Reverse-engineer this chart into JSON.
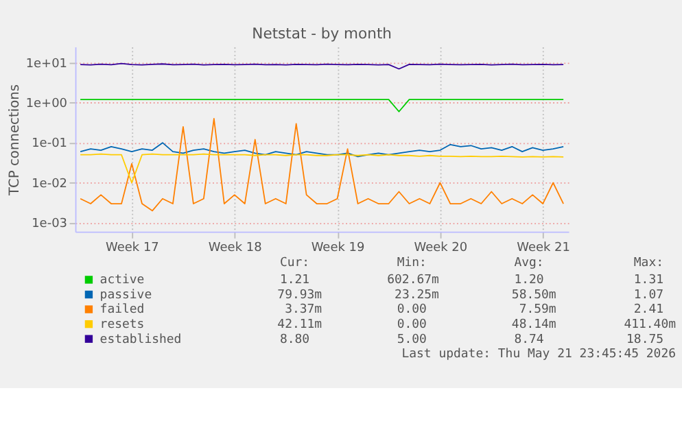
{
  "chart_data": {
    "type": "line",
    "title": "Netstat - by month",
    "ylabel": "TCP connections",
    "categories": [
      null,
      null,
      null,
      null,
      null,
      "Week 17",
      null,
      null,
      null,
      null,
      null,
      null,
      null,
      null,
      null,
      "Week 18",
      null,
      null,
      null,
      null,
      null,
      null,
      null,
      null,
      null,
      "Week 19",
      null,
      null,
      null,
      null,
      null,
      null,
      null,
      null,
      null,
      "Week 20",
      null,
      null,
      null,
      null,
      null,
      null,
      null,
      null,
      null,
      "Week 21",
      null,
      null
    ],
    "series": [
      {
        "name": "active",
        "color": "#00cc00",
        "values": [
          1.2,
          1.2,
          1.2,
          1.2,
          1.2,
          1.2,
          1.2,
          1.2,
          1.2,
          1.2,
          1.2,
          1.2,
          1.2,
          1.2,
          1.2,
          1.2,
          1.2,
          1.2,
          1.2,
          1.2,
          1.2,
          1.2,
          1.2,
          1.2,
          1.2,
          1.2,
          1.2,
          1.2,
          1.2,
          1.2,
          1.2,
          0.6,
          1.2,
          1.2,
          1.2,
          1.2,
          1.2,
          1.2,
          1.2,
          1.2,
          1.2,
          1.2,
          1.2,
          1.2,
          1.2,
          1.2,
          1.2,
          1.2
        ]
      },
      {
        "name": "passive",
        "color": "#0066b3",
        "values": [
          0.06,
          0.07,
          0.065,
          0.08,
          0.07,
          0.06,
          0.07,
          0.065,
          0.1,
          0.06,
          0.055,
          0.065,
          0.07,
          0.06,
          0.055,
          0.06,
          0.065,
          0.055,
          0.05,
          0.06,
          0.055,
          0.05,
          0.06,
          0.055,
          0.05,
          0.05,
          0.055,
          0.045,
          0.05,
          0.055,
          0.05,
          0.055,
          0.06,
          0.065,
          0.06,
          0.065,
          0.09,
          0.08,
          0.085,
          0.07,
          0.075,
          0.065,
          0.08,
          0.06,
          0.075,
          0.065,
          0.07,
          0.08
        ]
      },
      {
        "name": "failed",
        "color": "#ff8000",
        "values": [
          0.004,
          0.003,
          0.005,
          0.003,
          0.003,
          0.03,
          0.003,
          0.002,
          0.004,
          0.003,
          0.25,
          0.003,
          0.004,
          0.4,
          0.003,
          0.005,
          0.003,
          0.12,
          0.003,
          0.004,
          0.003,
          0.3,
          0.005,
          0.003,
          0.003,
          0.004,
          0.07,
          0.003,
          0.004,
          0.003,
          0.003,
          0.006,
          0.003,
          0.004,
          0.003,
          0.01,
          0.003,
          0.003,
          0.004,
          0.003,
          0.006,
          0.003,
          0.004,
          0.003,
          0.005,
          0.003,
          0.01,
          0.003
        ]
      },
      {
        "name": "resets",
        "color": "#ffcc00",
        "values": [
          0.05,
          0.05,
          0.052,
          0.05,
          0.05,
          0.01,
          0.05,
          0.052,
          0.05,
          0.05,
          0.05,
          0.05,
          0.052,
          0.05,
          0.05,
          0.05,
          0.05,
          0.048,
          0.05,
          0.05,
          0.048,
          0.05,
          0.05,
          0.048,
          0.048,
          0.05,
          0.05,
          0.048,
          0.05,
          0.048,
          0.05,
          0.048,
          0.048,
          0.046,
          0.048,
          0.046,
          0.046,
          0.045,
          0.046,
          0.045,
          0.045,
          0.046,
          0.045,
          0.044,
          0.045,
          0.044,
          0.045,
          0.044
        ]
      },
      {
        "name": "established",
        "color": "#330099",
        "values": [
          9,
          8.8,
          9.2,
          8.9,
          9.5,
          9,
          8.8,
          9.1,
          9.3,
          8.9,
          9,
          9.2,
          8.8,
          9,
          9.1,
          8.9,
          9,
          9.2,
          8.9,
          9,
          8.8,
          9.1,
          9,
          8.9,
          9.2,
          9,
          8.9,
          9.1,
          9,
          8.8,
          9,
          7,
          9.1,
          9,
          8.9,
          9.2,
          9,
          8.9,
          9,
          9.1,
          8.8,
          9,
          9.2,
          8.9,
          9,
          9.1,
          8.9,
          9
        ]
      }
    ],
    "ylim": [
      0.0006,
      25
    ],
    "log": true,
    "yticks": [
      {
        "value": 0.001,
        "label": "1e-03"
      },
      {
        "value": 0.01,
        "label": "1e-02"
      },
      {
        "value": 0.1,
        "label": "1e-01"
      },
      {
        "value": 1,
        "label": "1e+00"
      },
      {
        "value": 10,
        "label": "1e+01"
      }
    ],
    "grid": true,
    "legend": "bottom",
    "line_style": "solid",
    "marker": "none",
    "annotations": [
      "Cur:",
      "Min:",
      "Avg:",
      "Max:",
      "1.21",
      "602.67m",
      "1.20",
      "1.31",
      "79.93m",
      "23.25m",
      "58.50m",
      "1.07",
      "3.37m",
      "0.00",
      "7.59m",
      "2.41",
      "42.11m",
      "0.00",
      "48.14m",
      "411.40m",
      "8.80",
      "5.00",
      "8.74",
      "18.75",
      "Last update: Thu May 21 23:45:45 2026"
    ]
  }
}
